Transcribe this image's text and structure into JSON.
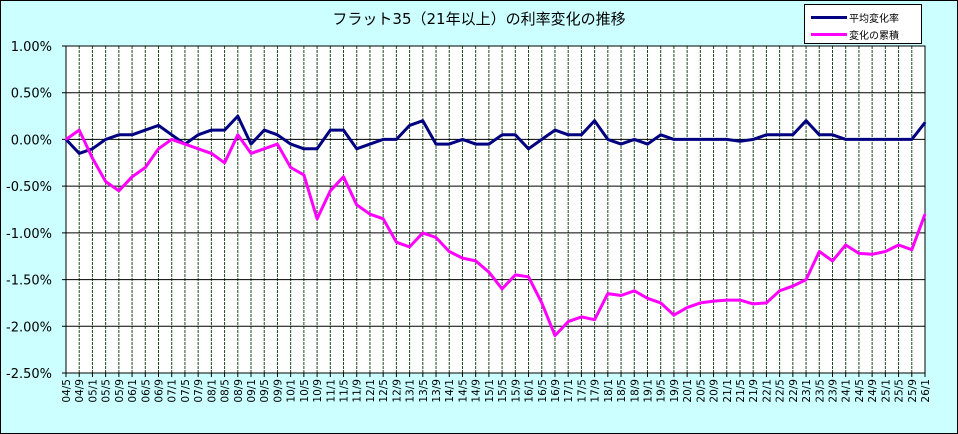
{
  "chart_data": {
    "type": "line",
    "title": "フラット35（21年以上）の利率変化の推移",
    "xlabel": "",
    "ylabel": "",
    "ylim": [
      -2.5,
      1.0
    ],
    "yticks": [
      "1.00%",
      "0.50%",
      "0.00%",
      "-0.50%",
      "-1.00%",
      "-1.50%",
      "-2.00%",
      "-2.50%"
    ],
    "ytick_values": [
      1.0,
      0.5,
      0.0,
      -0.5,
      -1.0,
      -1.5,
      -2.0,
      -2.5
    ],
    "grid": true,
    "legend_position": "top-right",
    "x": [
      "04/5",
      "04/9",
      "05/1",
      "05/5",
      "05/9",
      "06/1",
      "06/5",
      "06/9",
      "07/1",
      "07/5",
      "07/9",
      "08/1",
      "08/5",
      "08/9",
      "09/1",
      "09/5",
      "09/9",
      "10/1",
      "10/5",
      "10/9",
      "11/1",
      "11/5",
      "11/9",
      "12/1",
      "12/5",
      "12/9",
      "13/1",
      "13/5",
      "13/9",
      "14/1",
      "14/5",
      "14/9",
      "15/1",
      "15/5",
      "15/9",
      "16/1",
      "16/5",
      "16/9",
      "17/1",
      "17/5",
      "17/9",
      "18/1",
      "18/5",
      "18/9",
      "19/1",
      "19/5",
      "19/9",
      "20/1",
      "20/5",
      "20/9",
      "21/1",
      "21/5",
      "21/9",
      "22/1",
      "22/5",
      "22/9",
      "23/1",
      "23/5",
      "23/9",
      "24/1",
      "24/5",
      "24/9",
      "25/1",
      "25/5",
      "25/9",
      "26/1"
    ],
    "series": [
      {
        "name": "平均変化率",
        "color": "#000080",
        "values": [
          0,
          -0.15,
          -0.1,
          0,
          0.05,
          0.05,
          0.1,
          0.15,
          0.05,
          -0.05,
          0.05,
          0.1,
          0.1,
          0.25,
          -0.05,
          0.1,
          0.05,
          -0.05,
          -0.1,
          -0.1,
          0.1,
          0.1,
          -0.1,
          -0.05,
          0,
          0,
          0.15,
          0.2,
          -0.05,
          -0.05,
          0,
          -0.05,
          -0.05,
          0.05,
          0.05,
          -0.1,
          0,
          0.1,
          0.05,
          0.05,
          0.2,
          0,
          -0.05,
          0,
          -0.05,
          0.05,
          0,
          0,
          0,
          0,
          0,
          -0.02,
          0,
          0.05,
          0.05,
          0.05,
          0.2,
          0.05,
          0.05,
          0,
          0,
          0,
          0,
          0,
          0,
          0.18
        ]
      },
      {
        "name": "変化の累積",
        "color": "#ff00ff",
        "values": [
          0,
          0.1,
          -0.2,
          -0.45,
          -0.55,
          -0.4,
          -0.3,
          -0.1,
          0,
          -0.05,
          -0.1,
          -0.15,
          -0.25,
          0.05,
          -0.15,
          -0.1,
          -0.05,
          -0.3,
          -0.38,
          -0.85,
          -0.55,
          -0.4,
          -0.7,
          -0.8,
          -0.85,
          -1.1,
          -1.15,
          -1.0,
          -1.05,
          -1.2,
          -1.27,
          -1.3,
          -1.42,
          -1.6,
          -1.45,
          -1.47,
          -1.75,
          -2.1,
          -1.95,
          -1.9,
          -1.93,
          -1.65,
          -1.67,
          -1.62,
          -1.7,
          -1.75,
          -1.88,
          -1.8,
          -1.75,
          -1.73,
          -1.72,
          -1.72,
          -1.76,
          -1.75,
          -1.62,
          -1.57,
          -1.5,
          -1.2,
          -1.3,
          -1.13,
          -1.22,
          -1.23,
          -1.2,
          -1.13,
          -1.18,
          -0.8
        ]
      }
    ]
  }
}
